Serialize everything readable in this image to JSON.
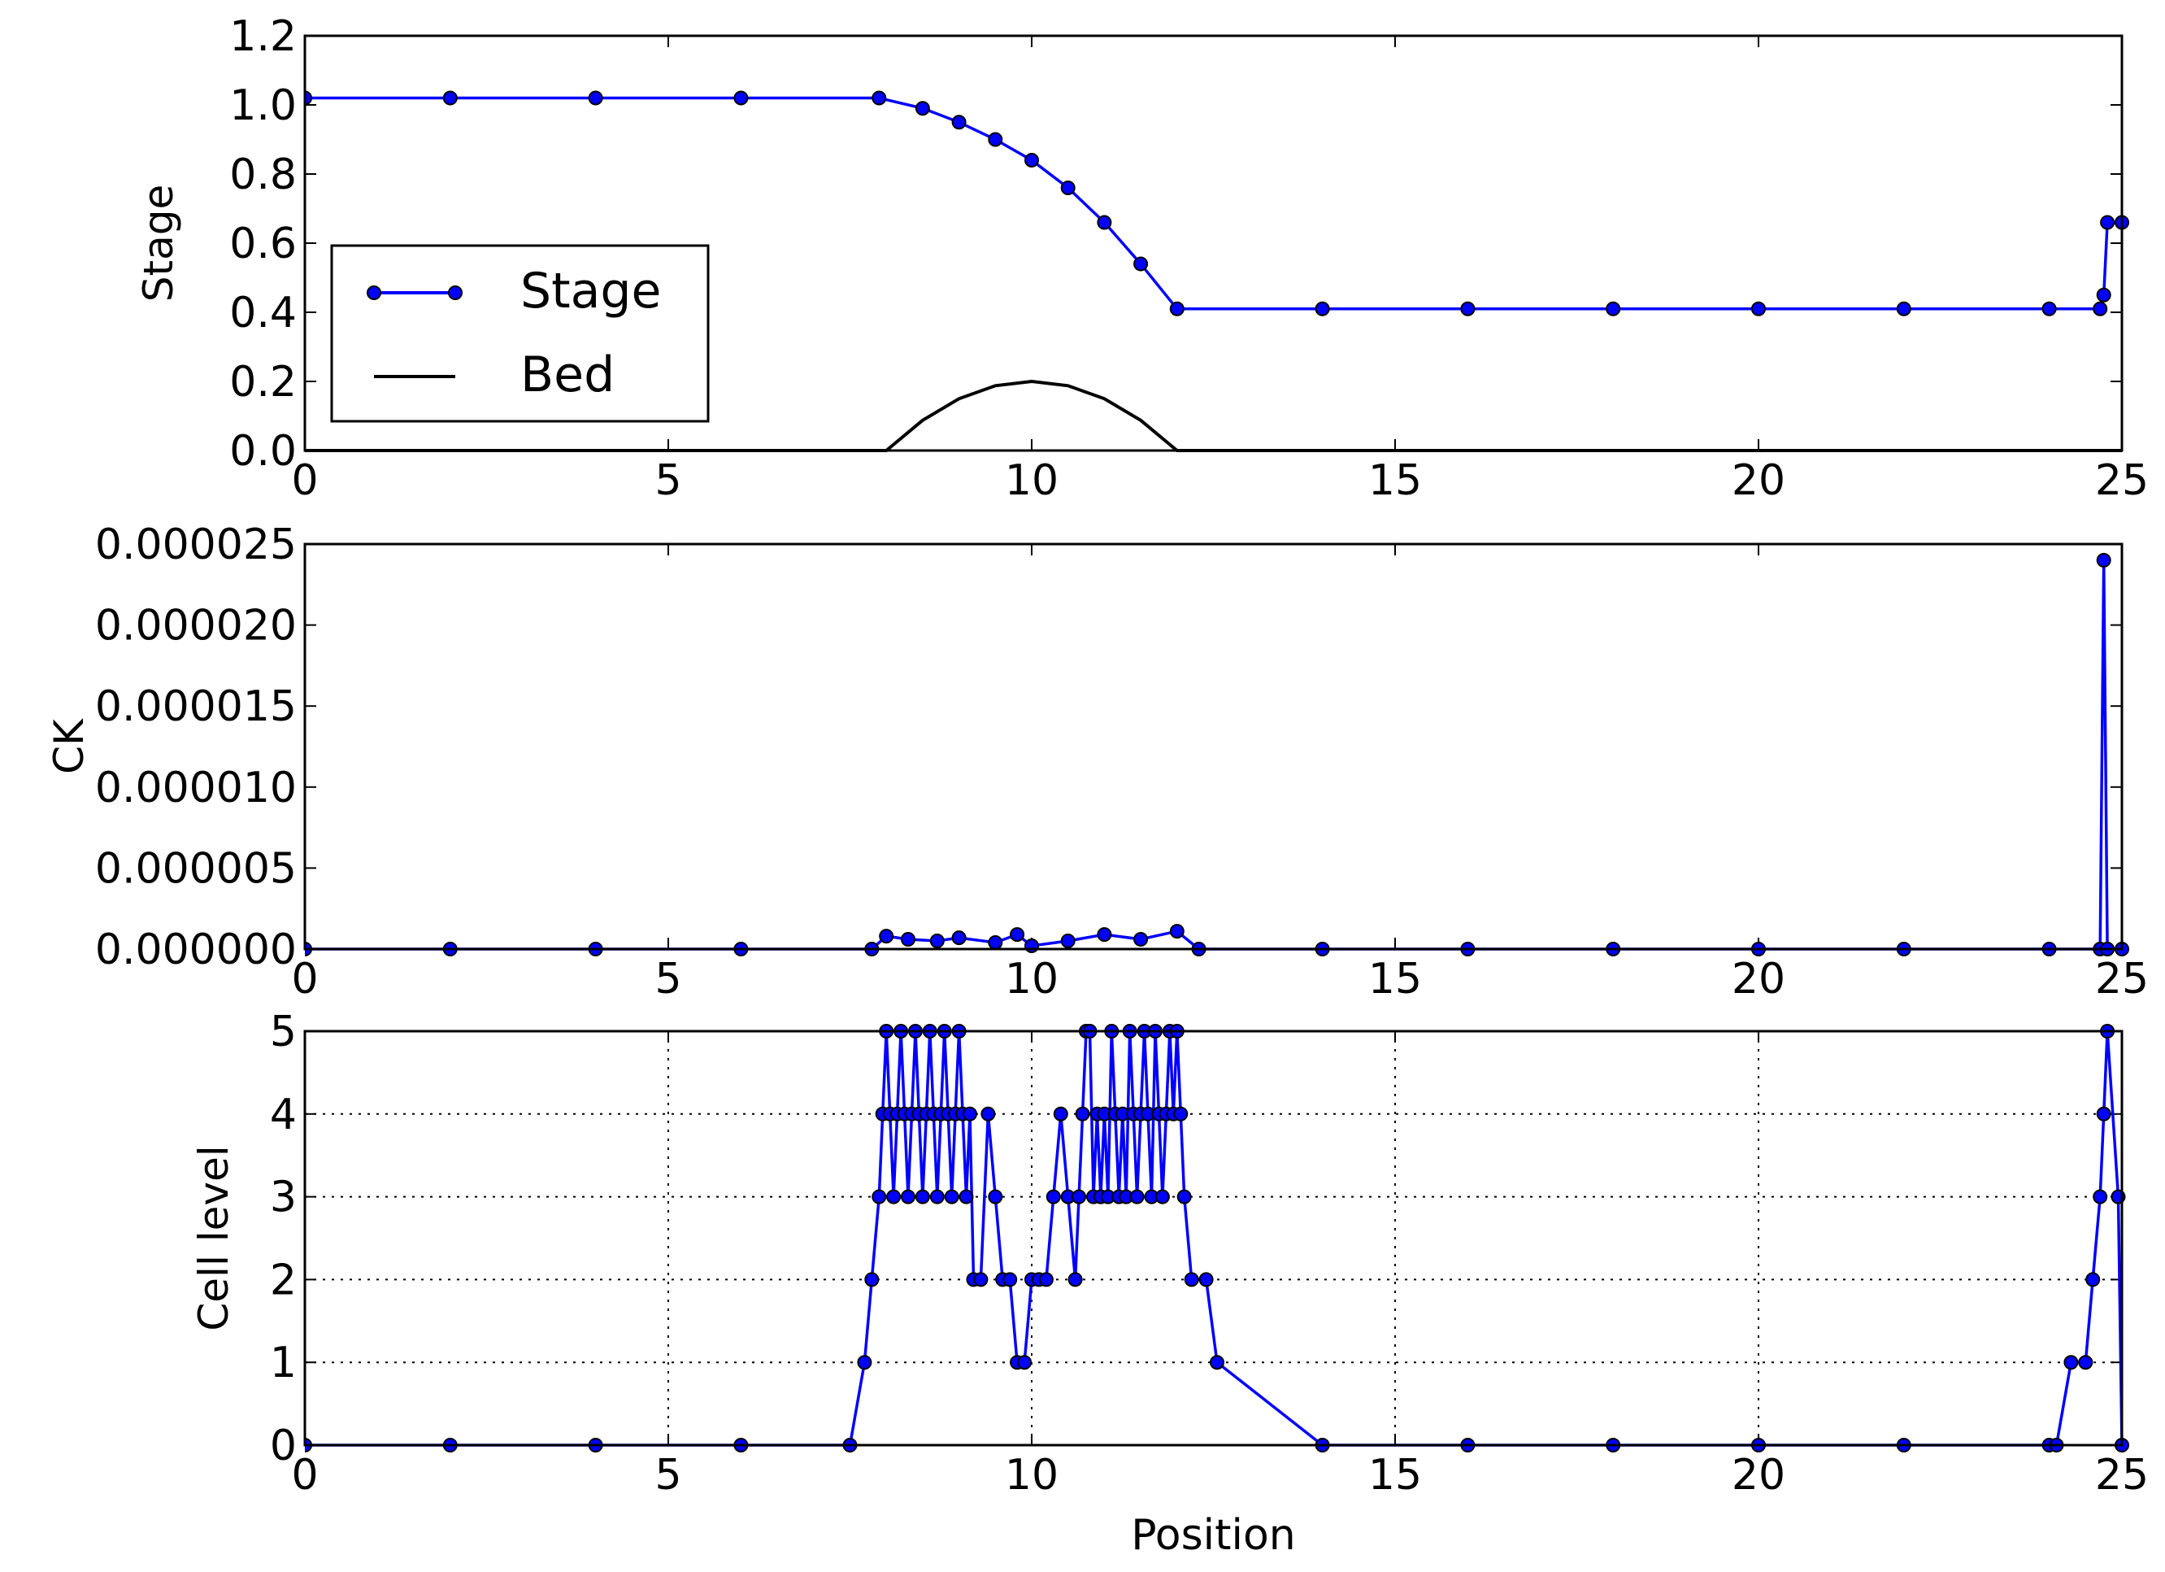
{
  "figure": {
    "colors": {
      "series": "#0000ff",
      "marker_face": "#0000ff",
      "marker_edge": "#000000",
      "bed": "#000000",
      "axes": "#000000",
      "grid": "#000000"
    }
  },
  "chart_data": [
    {
      "type": "line",
      "title": "",
      "xlabel": "",
      "ylabel": "Stage",
      "xlim": [
        0,
        25
      ],
      "ylim": [
        0.0,
        1.2
      ],
      "x_ticks": [
        "0",
        "5",
        "10",
        "15",
        "20",
        "25"
      ],
      "y_ticks": [
        "0.0",
        "0.2",
        "0.4",
        "0.6",
        "0.8",
        "1.0",
        "1.2"
      ],
      "grid": false,
      "legend": {
        "placement": "center-left",
        "entries": [
          "Stage",
          "Bed"
        ]
      },
      "series": [
        {
          "name": "Stage",
          "style": "line-with-markers",
          "description": "flat at 1.02 from x=0 to x=8, falls smoothly to 0.41 at x=12, flat at 0.41 to x=24.7, jumps to 0.66 at x=24.8-25",
          "x": [
            0,
            2,
            4,
            6,
            7.9,
            8.5,
            9.0,
            9.5,
            10.0,
            10.5,
            11.0,
            11.5,
            12.0,
            14,
            16,
            18,
            20,
            22,
            24,
            24.7,
            24.75,
            24.8,
            25
          ],
          "y": [
            1.02,
            1.02,
            1.02,
            1.02,
            1.02,
            0.99,
            0.95,
            0.9,
            0.84,
            0.76,
            0.66,
            0.54,
            0.41,
            0.41,
            0.41,
            0.41,
            0.41,
            0.41,
            0.41,
            0.41,
            0.45,
            0.66,
            0.66
          ]
        },
        {
          "name": "Bed",
          "style": "line",
          "description": "zero except a parabolic hump between x=8 and x=12 peaking at 0.2 at x=10",
          "x": [
            0,
            8,
            8.5,
            9,
            9.5,
            10,
            10.5,
            11,
            11.5,
            12,
            25
          ],
          "y": [
            0,
            0,
            0.0875,
            0.15,
            0.1875,
            0.2,
            0.1875,
            0.15,
            0.0875,
            0,
            0
          ]
        }
      ]
    },
    {
      "type": "line",
      "title": "",
      "xlabel": "",
      "ylabel": "CK",
      "xlim": [
        0,
        25
      ],
      "ylim": [
        0,
        2.5e-05
      ],
      "x_ticks": [
        "0",
        "5",
        "10",
        "15",
        "20",
        "25"
      ],
      "y_ticks": [
        "0.000000",
        "0.000005",
        "0.000010",
        "0.000015",
        "0.000020",
        "0.000025"
      ],
      "grid": false,
      "series": [
        {
          "style": "line-with-markers",
          "description": "essentially zero everywhere, small noise (<1.2e-6) between x=7.9 and x=12.2, a single spike of 2.4e-5 at x=24.75",
          "x": [
            0,
            2,
            4,
            6,
            7.8,
            8.0,
            8.3,
            8.7,
            9.0,
            9.5,
            9.8,
            10.0,
            10.5,
            11.0,
            11.5,
            12.0,
            12.3,
            14,
            16,
            18,
            20,
            22,
            24,
            24.7,
            24.75,
            24.8,
            25
          ],
          "y": [
            0,
            0,
            0,
            0,
            0,
            8e-07,
            6e-07,
            5e-07,
            7e-07,
            4e-07,
            9e-07,
            2e-07,
            5e-07,
            9e-07,
            6e-07,
            1.1e-06,
            0,
            0,
            0,
            0,
            0,
            0,
            0,
            0,
            2.4e-05,
            0,
            0
          ]
        }
      ]
    },
    {
      "type": "line",
      "title": "",
      "xlabel": "Position",
      "ylabel": "Cell level",
      "xlim": [
        0,
        25
      ],
      "ylim": [
        0,
        5
      ],
      "x_ticks": [
        "0",
        "5",
        "10",
        "15",
        "20",
        "25"
      ],
      "y_ticks": [
        "0",
        "1",
        "2",
        "3",
        "4",
        "5"
      ],
      "grid": true,
      "series": [
        {
          "style": "line-with-markers",
          "description": "refinement level: 0 outside, rises to 3-5 over the hump region 7.7-12.2 with a dip near x=10, and again up to 5 near x=24.8",
          "x": [
            0,
            2,
            4,
            6,
            7.5,
            7.7,
            7.8,
            7.9,
            7.95,
            8.0,
            8.05,
            8.1,
            8.15,
            8.2,
            8.25,
            8.3,
            8.35,
            8.4,
            8.45,
            8.5,
            8.55,
            8.6,
            8.65,
            8.7,
            8.75,
            8.8,
            8.85,
            8.9,
            8.95,
            9.0,
            9.05,
            9.1,
            9.15,
            9.2,
            9.3,
            9.4,
            9.5,
            9.6,
            9.7,
            9.8,
            9.9,
            10.0,
            10.1,
            10.2,
            10.3,
            10.4,
            10.5,
            10.6,
            10.65,
            10.7,
            10.75,
            10.8,
            10.85,
            10.9,
            10.95,
            11.0,
            11.05,
            11.1,
            11.15,
            11.2,
            11.25,
            11.3,
            11.35,
            11.4,
            11.45,
            11.5,
            11.55,
            11.6,
            11.65,
            11.7,
            11.75,
            11.8,
            11.85,
            11.9,
            11.95,
            12.0,
            12.05,
            12.1,
            12.2,
            12.4,
            12.55,
            14,
            16,
            18,
            20,
            22,
            24,
            24.1,
            24.3,
            24.5,
            24.6,
            24.7,
            24.75,
            24.8,
            24.95,
            25
          ],
          "y": [
            0,
            0,
            0,
            0,
            0,
            1,
            2,
            3,
            4,
            5,
            4,
            3,
            4,
            5,
            4,
            3,
            4,
            5,
            4,
            3,
            4,
            5,
            4,
            3,
            4,
            5,
            4,
            3,
            4,
            5,
            4,
            3,
            4,
            2,
            2,
            4,
            3,
            2,
            2,
            1,
            1,
            2,
            2,
            2,
            3,
            4,
            3,
            2,
            3,
            4,
            5,
            5,
            3,
            4,
            3,
            4,
            3,
            5,
            4,
            3,
            4,
            3,
            5,
            4,
            3,
            4,
            5,
            4,
            3,
            5,
            4,
            3,
            4,
            5,
            4,
            5,
            4,
            3,
            2,
            2,
            1,
            0,
            0,
            0,
            0,
            0,
            0,
            0,
            1,
            1,
            2,
            3,
            4,
            5,
            3,
            0
          ]
        }
      ]
    }
  ]
}
